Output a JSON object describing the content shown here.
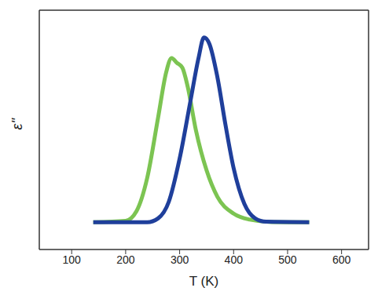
{
  "chart_data": {
    "type": "line",
    "x_label": "T (K)",
    "y_label": "ε''",
    "xlim": [
      40,
      650
    ],
    "xticks": [
      100,
      200,
      300,
      400,
      500,
      600
    ],
    "ylim": [
      0,
      1
    ],
    "tick_labels": "x",
    "grid": false,
    "series": [
      {
        "color": "#7cc452",
        "x": [
          140,
          200,
          220,
          240,
          260,
          275,
          285,
          295,
          305,
          315,
          330,
          350,
          370,
          400,
          430,
          470,
          540
        ],
        "values": [
          0.114,
          0.12,
          0.16,
          0.3,
          0.55,
          0.74,
          0.8,
          0.78,
          0.76,
          0.68,
          0.5,
          0.33,
          0.22,
          0.15,
          0.125,
          0.115,
          0.114
        ]
      },
      {
        "color": "#1f3f9b",
        "x": [
          140,
          240,
          260,
          280,
          300,
          320,
          335,
          345,
          355,
          370,
          385,
          400,
          420,
          440,
          460,
          540
        ],
        "values": [
          0.114,
          0.114,
          0.13,
          0.2,
          0.38,
          0.62,
          0.8,
          0.886,
          0.86,
          0.72,
          0.52,
          0.34,
          0.19,
          0.13,
          0.116,
          0.114
        ]
      }
    ]
  }
}
